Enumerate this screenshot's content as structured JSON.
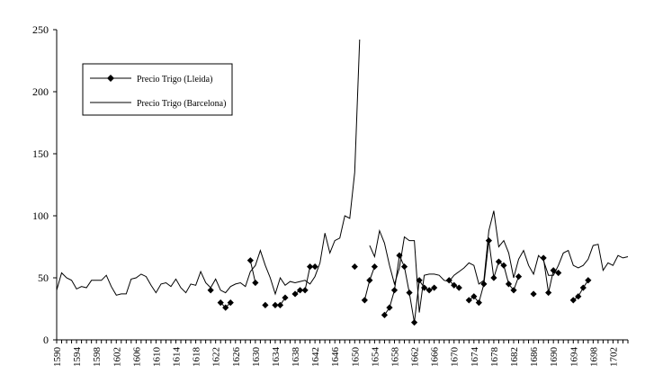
{
  "chart_data": {
    "type": "line",
    "title": "",
    "xlabel": "",
    "ylabel": "",
    "xlim": [
      1590,
      1705
    ],
    "ylim": [
      0,
      250
    ],
    "y_ticks": [
      0,
      50,
      100,
      150,
      200,
      250
    ],
    "x_tick_labels": [
      "1590",
      "1594",
      "1598",
      "1602",
      "1606",
      "1610",
      "1614",
      "1618",
      "1622",
      "1626",
      "1630",
      "1634",
      "1638",
      "1642",
      "1646",
      "1650",
      "1654",
      "1658",
      "1662",
      "1666",
      "1670",
      "1674",
      "1678",
      "1682",
      "1686",
      "1690",
      "1694",
      "1698",
      "1702"
    ],
    "grid": false,
    "legend_placement": "top-left",
    "series": [
      {
        "name": "Precio Trigo (Lleida)",
        "color": "#000000",
        "marker": "diamond",
        "line": true,
        "points": [
          [
            1621,
            40
          ],
          [
            1623,
            30
          ],
          [
            1624,
            26
          ],
          [
            1625,
            30
          ],
          [
            1629,
            64
          ],
          [
            1630,
            46
          ],
          [
            1632,
            28
          ],
          [
            1634,
            28
          ],
          [
            1635,
            28
          ],
          [
            1636,
            34
          ],
          [
            1638,
            37
          ],
          [
            1639,
            40
          ],
          [
            1640,
            40
          ],
          [
            1641,
            59
          ],
          [
            1642,
            59
          ],
          [
            1650,
            59
          ],
          [
            1652,
            32
          ],
          [
            1653,
            48
          ],
          [
            1654,
            59
          ],
          [
            1656,
            20
          ],
          [
            1657,
            26
          ],
          [
            1658,
            40
          ],
          [
            1659,
            68
          ],
          [
            1660,
            59
          ],
          [
            1661,
            38
          ],
          [
            1662,
            14
          ],
          [
            1663,
            48
          ],
          [
            1664,
            42
          ],
          [
            1665,
            40
          ],
          [
            1666,
            42
          ],
          [
            1669,
            48
          ],
          [
            1670,
            44
          ],
          [
            1671,
            42
          ],
          [
            1673,
            32
          ],
          [
            1674,
            35
          ],
          [
            1675,
            30
          ],
          [
            1676,
            45
          ],
          [
            1677,
            80
          ],
          [
            1678,
            50
          ],
          [
            1679,
            63
          ],
          [
            1680,
            60
          ],
          [
            1681,
            45
          ],
          [
            1682,
            40
          ],
          [
            1683,
            51
          ],
          [
            1686,
            37
          ],
          [
            1688,
            66
          ],
          [
            1689,
            38
          ],
          [
            1690,
            56
          ],
          [
            1691,
            54
          ],
          [
            1694,
            32
          ],
          [
            1695,
            35
          ],
          [
            1696,
            42
          ],
          [
            1697,
            48
          ]
        ]
      },
      {
        "name": "Precio Trigo (Barcelona)",
        "color": "#000000",
        "marker": "none",
        "line": true,
        "points": [
          [
            1590,
            40
          ],
          [
            1591,
            54
          ],
          [
            1592,
            50
          ],
          [
            1593,
            48
          ],
          [
            1594,
            41
          ],
          [
            1595,
            43
          ],
          [
            1596,
            42
          ],
          [
            1597,
            48
          ],
          [
            1598,
            48
          ],
          [
            1599,
            48
          ],
          [
            1600,
            52
          ],
          [
            1601,
            43
          ],
          [
            1602,
            36
          ],
          [
            1603,
            37
          ],
          [
            1604,
            37
          ],
          [
            1605,
            49
          ],
          [
            1606,
            50
          ],
          [
            1607,
            53
          ],
          [
            1608,
            51
          ],
          [
            1609,
            44
          ],
          [
            1610,
            38
          ],
          [
            1611,
            45
          ],
          [
            1612,
            46
          ],
          [
            1613,
            43
          ],
          [
            1614,
            49
          ],
          [
            1615,
            42
          ],
          [
            1616,
            38
          ],
          [
            1617,
            45
          ],
          [
            1618,
            44
          ],
          [
            1619,
            55
          ],
          [
            1620,
            46
          ],
          [
            1621,
            42
          ],
          [
            1622,
            49
          ],
          [
            1623,
            40
          ],
          [
            1624,
            38
          ],
          [
            1625,
            43
          ],
          [
            1626,
            45
          ],
          [
            1627,
            46
          ],
          [
            1628,
            43
          ],
          [
            1629,
            55
          ],
          [
            1630,
            60
          ],
          [
            1631,
            72
          ],
          [
            1632,
            60
          ],
          [
            1633,
            50
          ],
          [
            1634,
            37
          ],
          [
            1635,
            50
          ],
          [
            1636,
            44
          ],
          [
            1637,
            47
          ],
          [
            1638,
            46
          ],
          [
            1639,
            47
          ],
          [
            1640,
            48
          ],
          [
            1641,
            45
          ],
          [
            1642,
            51
          ],
          [
            1643,
            62
          ],
          [
            1644,
            86
          ],
          [
            1645,
            70
          ],
          [
            1646,
            80
          ],
          [
            1647,
            82
          ],
          [
            1648,
            100
          ],
          [
            1649,
            98
          ],
          [
            1650,
            135
          ],
          [
            1651,
            242
          ],
          [
            1652,
            null
          ],
          [
            1653,
            76
          ],
          [
            1654,
            67
          ],
          [
            1655,
            88
          ],
          [
            1656,
            78
          ],
          [
            1657,
            60
          ],
          [
            1658,
            45
          ],
          [
            1659,
            58
          ],
          [
            1660,
            83
          ],
          [
            1661,
            80
          ],
          [
            1662,
            80
          ],
          [
            1663,
            22
          ],
          [
            1664,
            52
          ],
          [
            1665,
            53
          ],
          [
            1666,
            53
          ],
          [
            1667,
            52
          ],
          [
            1668,
            48
          ],
          [
            1669,
            47
          ],
          [
            1670,
            52
          ],
          [
            1671,
            55
          ],
          [
            1672,
            58
          ],
          [
            1673,
            62
          ],
          [
            1674,
            60
          ],
          [
            1675,
            45
          ],
          [
            1676,
            48
          ],
          [
            1677,
            88
          ],
          [
            1678,
            104
          ],
          [
            1679,
            75
          ],
          [
            1680,
            80
          ],
          [
            1681,
            70
          ],
          [
            1682,
            50
          ],
          [
            1683,
            65
          ],
          [
            1684,
            72
          ],
          [
            1685,
            60
          ],
          [
            1686,
            53
          ],
          [
            1687,
            68
          ],
          [
            1688,
            64
          ],
          [
            1689,
            52
          ],
          [
            1690,
            52
          ],
          [
            1691,
            60
          ],
          [
            1692,
            70
          ],
          [
            1693,
            72
          ],
          [
            1694,
            60
          ],
          [
            1695,
            58
          ],
          [
            1696,
            60
          ],
          [
            1697,
            65
          ],
          [
            1698,
            76
          ],
          [
            1699,
            77
          ],
          [
            1700,
            56
          ],
          [
            1701,
            62
          ],
          [
            1702,
            60
          ],
          [
            1703,
            68
          ],
          [
            1704,
            66
          ],
          [
            1705,
            67
          ]
        ]
      }
    ]
  }
}
